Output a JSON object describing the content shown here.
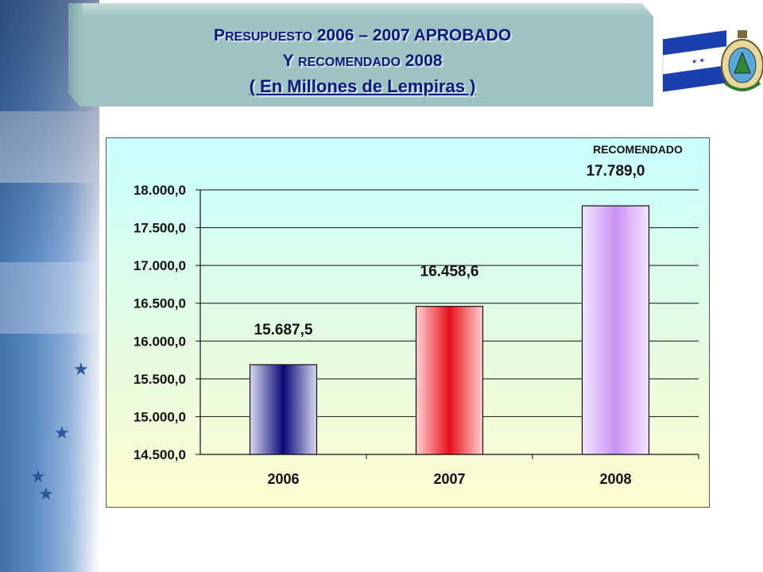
{
  "header": {
    "line1_a": "P",
    "line1_b": "RESUPUESTO",
    "line1_c": " 2006 – 2007 APROBADO",
    "line2_a": "Y ",
    "line2_b": "RECOMENDADO",
    "line2_c": " 2008",
    "line3": "( En Millones de Lempiras )"
  },
  "colors": {
    "title_text": "#0b1a80",
    "banner": "#9fc3c3",
    "bar_2006": "#0a0a78",
    "bar_2007": "#e8101a",
    "bar_2008": "#c992f2"
  },
  "chart_data": {
    "type": "bar",
    "categories": [
      "2006",
      "2007",
      "2008"
    ],
    "values": [
      15687.5,
      16458.6,
      17789.0
    ],
    "value_labels": [
      "15.687,5",
      "16.458,6",
      "17.789,0"
    ],
    "annotations": [
      {
        "text": "RECOMENDADO",
        "category": "2008"
      }
    ],
    "ylim": [
      14500,
      18000
    ],
    "yticks": [
      14500,
      15000,
      15500,
      16000,
      16500,
      17000,
      17500,
      18000
    ],
    "ytick_labels": [
      "14.500,0",
      "15.000,0",
      "15.500,0",
      "16.000,0",
      "16.500,0",
      "17.000,0",
      "17.500,0",
      "18.000,0"
    ],
    "grid": true,
    "title": "",
    "xlabel": "",
    "ylabel": ""
  }
}
